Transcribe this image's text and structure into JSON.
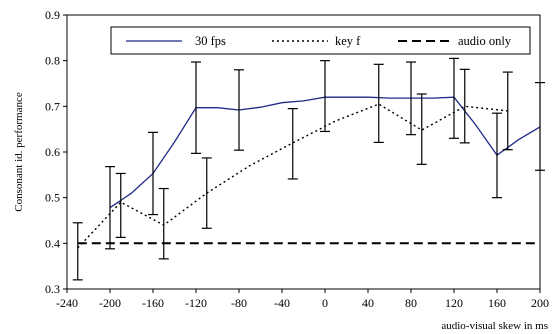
{
  "chart_data": {
    "type": "line",
    "title": "",
    "xlabel": "audio-visual skew in ms",
    "ylabel": "Consonant id. performance",
    "xlim": [
      -240,
      200
    ],
    "ylim": [
      0.3,
      0.9
    ],
    "x_ticks": [
      "-240",
      "-200",
      "-160",
      "-120",
      "-80",
      "-40",
      "0",
      "40",
      "80",
      "120",
      "160",
      "200"
    ],
    "y_ticks": [
      "0.3",
      "0.4",
      "0.5",
      "0.6",
      "0.7",
      "0.8",
      "0.9"
    ],
    "grid": false,
    "legend_position": "top",
    "series": [
      {
        "name": "30 fps",
        "style": "solid",
        "color": "#1f2a86",
        "x": [
          -200,
          -180,
          -160,
          -140,
          -120,
          -100,
          -80,
          -60,
          -40,
          -20,
          0,
          20,
          40,
          60,
          80,
          100,
          120,
          140,
          160,
          180,
          200
        ],
        "y": [
          0.478,
          0.51,
          0.553,
          0.622,
          0.697,
          0.697,
          0.692,
          0.698,
          0.708,
          0.712,
          0.72,
          0.72,
          0.72,
          0.718,
          0.718,
          0.718,
          0.72,
          0.66,
          0.593,
          0.627,
          0.655
        ],
        "error_bars": [
          {
            "x": -200,
            "low": 0.388,
            "high": 0.568
          },
          {
            "x": -160,
            "low": 0.463,
            "high": 0.643
          },
          {
            "x": -120,
            "low": 0.597,
            "high": 0.797
          },
          {
            "x": -80,
            "low": 0.604,
            "high": 0.78
          },
          {
            "x": 0,
            "low": 0.645,
            "high": 0.8
          },
          {
            "x": 80,
            "low": 0.638,
            "high": 0.797
          },
          {
            "x": 120,
            "low": 0.63,
            "high": 0.805
          },
          {
            "x": 160,
            "low": 0.5,
            "high": 0.685
          },
          {
            "x": 200,
            "low": 0.56,
            "high": 0.752
          }
        ]
      },
      {
        "name": "key f",
        "style": "dotted",
        "color": "#000000",
        "x": [
          -230,
          -190,
          -150,
          -110,
          -70,
          -30,
          10,
          50,
          90,
          130,
          170
        ],
        "y": [
          0.39,
          0.49,
          0.44,
          0.51,
          0.57,
          0.62,
          0.668,
          0.705,
          0.648,
          0.7,
          0.69
        ],
        "error_bars": [
          {
            "x": -230,
            "low": 0.32,
            "high": 0.445
          },
          {
            "x": -190,
            "low": 0.413,
            "high": 0.553
          },
          {
            "x": -150,
            "low": 0.366,
            "high": 0.52
          },
          {
            "x": -110,
            "low": 0.433,
            "high": 0.587
          },
          {
            "x": -30,
            "low": 0.541,
            "high": 0.695
          },
          {
            "x": 50,
            "low": 0.621,
            "high": 0.792
          },
          {
            "x": 90,
            "low": 0.573,
            "high": 0.727
          },
          {
            "x": 130,
            "low": 0.62,
            "high": 0.781
          },
          {
            "x": 170,
            "low": 0.605,
            "high": 0.775
          }
        ]
      },
      {
        "name": "audio only",
        "style": "dashed",
        "color": "#000000",
        "x": [
          -230,
          200
        ],
        "y": [
          0.4,
          0.4
        ]
      }
    ]
  }
}
